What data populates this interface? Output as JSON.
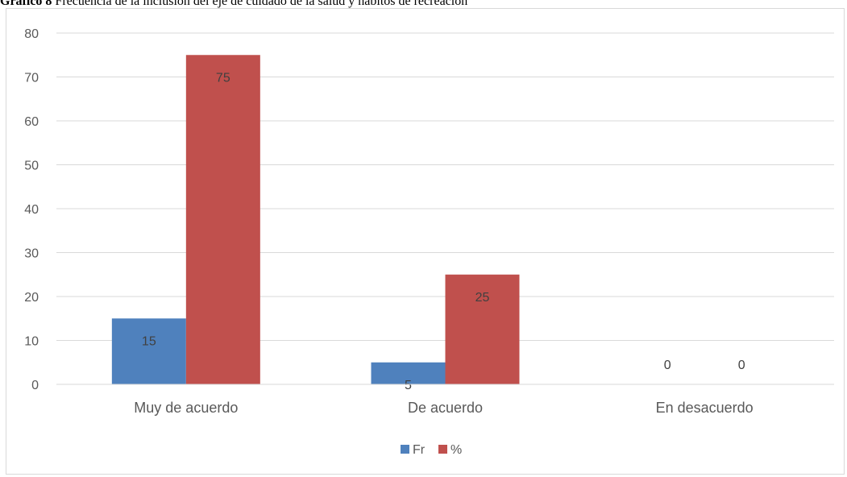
{
  "caption": {
    "label": "Gráfico 8",
    "text": " Frecuencia de la inclusión del eje de cuidado de la salud y hábitos de recreación"
  },
  "chart_data": {
    "type": "bar",
    "categories": [
      "Muy de acuerdo",
      "De acuerdo",
      "En desacuerdo"
    ],
    "series": [
      {
        "name": "Fr",
        "values": [
          15,
          5,
          0
        ],
        "color": "#4f81bd"
      },
      {
        "name": "%",
        "values": [
          75,
          25,
          0
        ],
        "color": "#c0504d"
      }
    ],
    "ylim": [
      0,
      80
    ],
    "yticks": [
      0,
      10,
      20,
      30,
      40,
      50,
      60,
      70,
      80
    ],
    "grid": true,
    "legend": "bottom",
    "data_labels": true
  }
}
